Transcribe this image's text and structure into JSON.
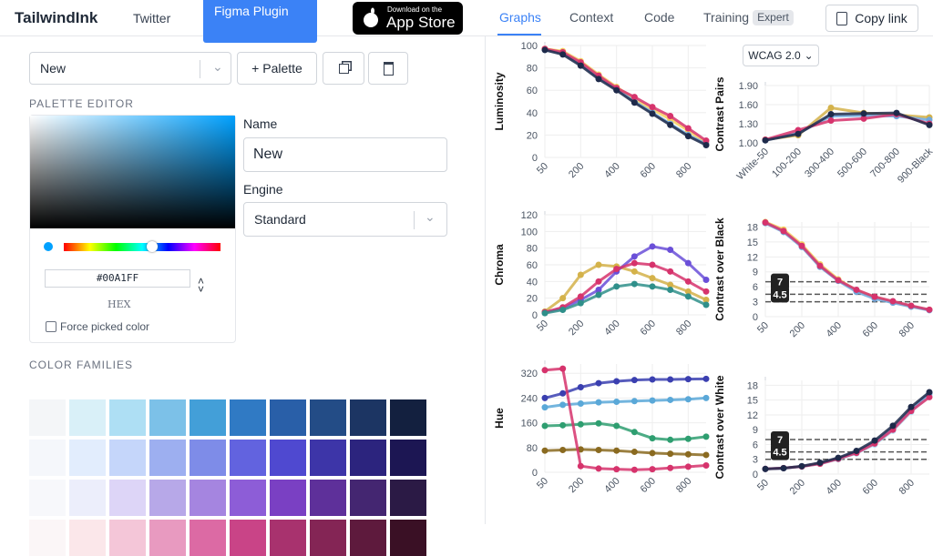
{
  "header": {
    "brand": "TailwindInk",
    "twitter": "Twitter",
    "figma": "Figma Plugin",
    "appstore_small": "Download on the",
    "appstore_big": "App Store"
  },
  "tabs": {
    "items": [
      "Graphs",
      "Context",
      "Code",
      "Training"
    ],
    "badge": "Expert",
    "copy": "Copy link"
  },
  "toolbar": {
    "palette_select": "New",
    "add_palette": "+ Palette"
  },
  "editor": {
    "title": "PALETTE EDITOR",
    "name_label": "Name",
    "name_value": "New",
    "engine_label": "Engine",
    "engine_value": "Standard",
    "hex_value": "#00A1FF",
    "hex_label": "HEX",
    "force_label": "Force picked color"
  },
  "families": {
    "title": "COLOR FAMILIES",
    "rows": [
      [
        "#f4f6f8",
        "#d9f0f8",
        "#aedff4",
        "#7cc1e8",
        "#439fd8",
        "#307ac4",
        "#295fa8",
        "#234c86",
        "#1c3563",
        "#13203f"
      ],
      [
        "#f5f7fb",
        "#e2edfd",
        "#c5d6fa",
        "#9daff0",
        "#7e8ce8",
        "#6263df",
        "#4f49d0",
        "#3d35a8",
        "#2c247e",
        "#1c1653"
      ],
      [
        "#f7f8fb",
        "#eceefb",
        "#ddd5f7",
        "#b7a8e8",
        "#a585e0",
        "#8d5dd7",
        "#7a40c3",
        "#5e309a",
        "#442671",
        "#2b1a45"
      ],
      [
        "#fbf6f7",
        "#fbe7ea",
        "#f4c6d8",
        "#e89ac0",
        "#dc6aa4",
        "#c94487",
        "#a8326e",
        "#842555",
        "#5e1a3d",
        "#3a1025"
      ]
    ]
  },
  "wcag_select": "WCAG 2.0",
  "graphs": [
    {
      "type": "line",
      "y_label": "Luminosity",
      "ylim": [
        0,
        100
      ],
      "yticks": [
        0,
        20,
        40,
        60,
        80,
        100
      ],
      "shades": [
        50,
        100,
        200,
        300,
        400,
        500,
        600,
        700,
        800,
        900
      ],
      "xticks": [
        50,
        200,
        400,
        600,
        800
      ],
      "series": [
        {
          "color": "#f4d060",
          "values": [
            97,
            95,
            86,
            74,
            63,
            52,
            43,
            34,
            24,
            13
          ]
        },
        {
          "color": "#6fa8dc",
          "values": [
            96,
            93,
            83,
            71,
            61,
            50,
            40,
            30,
            20,
            12
          ]
        },
        {
          "color": "#d6336c",
          "values": [
            97,
            94,
            85,
            73,
            62,
            54,
            45,
            37,
            26,
            15
          ]
        },
        {
          "color": "#1e2a4a",
          "values": [
            96,
            92,
            82,
            70,
            60,
            49,
            39,
            29,
            19,
            11
          ]
        }
      ]
    },
    {
      "type": "line",
      "y_label": "Chroma",
      "ylim": [
        0,
        120
      ],
      "yticks": [
        0,
        20,
        40,
        60,
        80,
        100,
        120
      ],
      "shades": [
        50,
        100,
        200,
        300,
        400,
        500,
        600,
        700,
        800,
        900
      ],
      "xticks": [
        50,
        200,
        400,
        600,
        800
      ],
      "series": [
        {
          "color": "#d4b24a",
          "values": [
            4,
            20,
            48,
            60,
            58,
            52,
            44,
            36,
            28,
            18
          ]
        },
        {
          "color": "#6a4fd8",
          "values": [
            3,
            8,
            18,
            30,
            52,
            70,
            82,
            78,
            62,
            42
          ]
        },
        {
          "color": "#d6336c",
          "values": [
            3,
            9,
            22,
            40,
            55,
            62,
            60,
            52,
            40,
            28
          ]
        },
        {
          "color": "#2f8f8a",
          "values": [
            2,
            6,
            14,
            24,
            34,
            37,
            34,
            30,
            22,
            12
          ]
        }
      ]
    },
    {
      "type": "line",
      "y_label": "Hue",
      "ylim": [
        0,
        350
      ],
      "yticks": [
        0,
        80,
        160,
        240,
        320
      ],
      "shades": [
        50,
        100,
        200,
        300,
        400,
        500,
        600,
        700,
        800,
        900
      ],
      "xticks": [
        50,
        200,
        400,
        600,
        800
      ],
      "series": [
        {
          "color": "#3a3fb0",
          "values": [
            240,
            255,
            275,
            288,
            294,
            298,
            300,
            300,
            301,
            302
          ]
        },
        {
          "color": "#5aa8d8",
          "values": [
            210,
            218,
            222,
            226,
            228,
            230,
            232,
            234,
            236,
            240
          ]
        },
        {
          "color": "#2e9e70",
          "values": [
            150,
            152,
            155,
            158,
            150,
            130,
            110,
            105,
            108,
            115
          ]
        },
        {
          "color": "#8a6a20",
          "values": [
            70,
            72,
            74,
            72,
            70,
            66,
            62,
            60,
            58,
            56
          ]
        },
        {
          "color": "#d6336c",
          "values": [
            330,
            335,
            20,
            12,
            10,
            8,
            10,
            14,
            18,
            22
          ]
        }
      ]
    },
    {
      "type": "line",
      "y_label": "Contrast Pairs",
      "ylim": [
        1,
        1.9
      ],
      "yticks": [
        {
          "value": 1,
          "label": "1.00"
        },
        {
          "value": 1.3,
          "label": "1.30"
        },
        {
          "value": 1.6,
          "label": "1.60"
        },
        {
          "value": 1.9,
          "label": "1.90"
        }
      ],
      "categories": [
        "White-50",
        "100-200",
        "300-400",
        "500-600",
        "700-800",
        "900-Black"
      ],
      "series": [
        {
          "color": "#d4b24a",
          "values": [
            1.05,
            1.12,
            1.55,
            1.47,
            1.44,
            1.4
          ]
        },
        {
          "color": "#6fa8dc",
          "values": [
            1.04,
            1.15,
            1.42,
            1.43,
            1.42,
            1.36
          ]
        },
        {
          "color": "#d6336c",
          "values": [
            1.05,
            1.2,
            1.35,
            1.38,
            1.45,
            1.3
          ]
        },
        {
          "color": "#1e2a4a",
          "values": [
            1.04,
            1.14,
            1.45,
            1.46,
            1.47,
            1.28
          ]
        }
      ]
    },
    {
      "type": "line",
      "y_label": "Contrast over Black",
      "ylim": [
        0,
        19
      ],
      "yticks": [
        0,
        3,
        6,
        9,
        12,
        15,
        18
      ],
      "shades": [
        50,
        100,
        200,
        300,
        400,
        500,
        600,
        700,
        800,
        900
      ],
      "xticks": [
        50,
        200,
        400,
        600,
        800
      ],
      "thresholds": [
        7,
        4.5,
        3
      ],
      "badges": [
        7,
        4.5
      ],
      "series": [
        {
          "color": "#f4d060",
          "values": [
            19,
            17.5,
            14.5,
            10.5,
            7.5,
            5.3,
            3.9,
            3,
            2.1,
            1.4
          ]
        },
        {
          "color": "#6fa8dc",
          "values": [
            18.8,
            17,
            14,
            10,
            7.2,
            5,
            3.6,
            2.8,
            2,
            1.3
          ]
        },
        {
          "color": "#d6336c",
          "values": [
            18.9,
            17.2,
            14.2,
            10.2,
            7.3,
            5.4,
            4,
            3.1,
            2.2,
            1.4
          ]
        }
      ]
    },
    {
      "type": "line",
      "y_label": "Contrast over White",
      "ylim": [
        0,
        19
      ],
      "yticks": [
        0,
        3,
        6,
        9,
        12,
        15,
        18
      ],
      "shades": [
        50,
        100,
        200,
        300,
        400,
        500,
        600,
        700,
        800,
        900
      ],
      "xticks": [
        50,
        200,
        400,
        600,
        800
      ],
      "thresholds": [
        7,
        4.5,
        3
      ],
      "badges": [
        7,
        4.5
      ],
      "series": [
        {
          "color": "#aedff4",
          "values": [
            1.05,
            1.2,
            1.5,
            2.1,
            3,
            4.2,
            6,
            8.8,
            12.6,
            16
          ]
        },
        {
          "color": "#6fa8dc",
          "values": [
            1.05,
            1.2,
            1.6,
            2.2,
            3.2,
            4.5,
            6.5,
            9.4,
            13.2,
            16.4
          ]
        },
        {
          "color": "#d6336c",
          "values": [
            1.05,
            1.22,
            1.55,
            2.1,
            3.1,
            4.3,
            6.2,
            9,
            12.8,
            15.6
          ]
        },
        {
          "color": "#1e2a4a",
          "values": [
            1.04,
            1.2,
            1.6,
            2.3,
            3.3,
            4.7,
            6.8,
            9.8,
            13.6,
            16.6
          ]
        }
      ]
    }
  ]
}
